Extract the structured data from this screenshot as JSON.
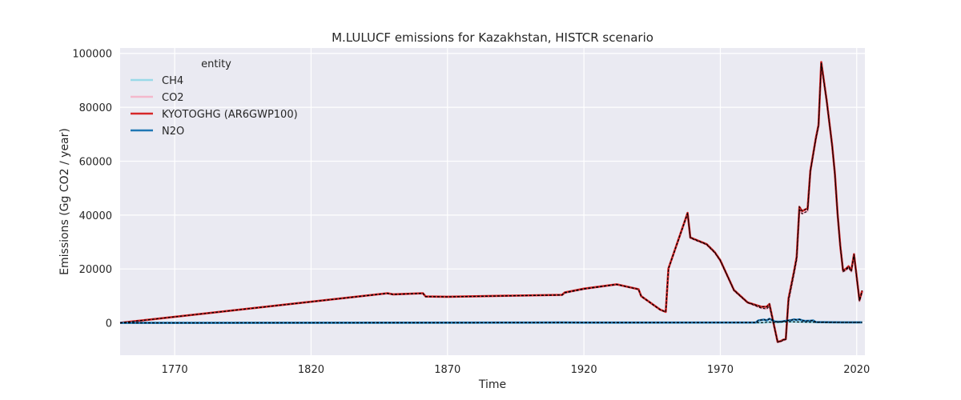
{
  "chart_data": {
    "type": "line",
    "title": "M.LULUCF emissions for Kazakhstan, HISTCR scenario",
    "xlabel": "Time",
    "ylabel": "Emissions (Gg CO2 / year)",
    "xlim": [
      1750,
      2023
    ],
    "ylim": [
      -12000,
      102000
    ],
    "xticks": [
      1770,
      1820,
      1870,
      1920,
      1970,
      2020
    ],
    "yticks": [
      0,
      20000,
      40000,
      60000,
      80000,
      100000
    ],
    "grid": true,
    "legend": {
      "title": "entity",
      "placement": "top-left"
    },
    "series": [
      {
        "name": "CH4",
        "color": "#9ad9e8",
        "x": [
          1750,
          1900,
          1985,
          1988,
          1990,
          1995,
          2000,
          2010,
          2022
        ],
        "y": [
          0,
          30,
          80,
          250,
          200,
          400,
          300,
          150,
          150
        ]
      },
      {
        "name": "CO2",
        "color": "#f4b8cc",
        "x": [
          1750,
          1848,
          1850,
          1861,
          1862,
          1870,
          1912,
          1913,
          1920,
          1932,
          1940,
          1941,
          1948,
          1950,
          1951,
          1958,
          1959,
          1965,
          1968,
          1970,
          1975,
          1980,
          1985,
          1987,
          1988,
          1991,
          1992,
          1993,
          1994,
          1995,
          1997,
          1998,
          1999,
          2000,
          2002,
          2003,
          2005,
          2006,
          2007,
          2009,
          2011,
          2012,
          2013,
          2014,
          2015,
          2016,
          2017,
          2018,
          2019,
          2021,
          2022
        ],
        "y": [
          0,
          10900,
          10500,
          10900,
          9700,
          9600,
          10300,
          11100,
          12500,
          14200,
          12400,
          9800,
          4800,
          4000,
          20000,
          40500,
          31500,
          29000,
          26000,
          23000,
          12000,
          7500,
          5500,
          5200,
          6300,
          -7200,
          -7000,
          -6500,
          -6200,
          8000,
          18000,
          23500,
          42000,
          40500,
          41500,
          56000,
          68000,
          73000,
          96000,
          82000,
          65500,
          55000,
          40000,
          28000,
          19000,
          19500,
          20500,
          19000,
          25000,
          8000,
          11500
        ]
      },
      {
        "name": "KYOTOGHG (AR6GWP100)",
        "color": "#d62728",
        "x": [
          1750,
          1848,
          1850,
          1861,
          1862,
          1870,
          1912,
          1913,
          1920,
          1932,
          1940,
          1941,
          1948,
          1950,
          1951,
          1958,
          1959,
          1965,
          1968,
          1970,
          1975,
          1980,
          1985,
          1987,
          1988,
          1991,
          1992,
          1993,
          1994,
          1995,
          1997,
          1998,
          1999,
          2000,
          2002,
          2003,
          2005,
          2006,
          2007,
          2009,
          2011,
          2012,
          2013,
          2014,
          2015,
          2016,
          2017,
          2018,
          2019,
          2021,
          2022
        ],
        "y": [
          0,
          11000,
          10600,
          11000,
          9800,
          9700,
          10400,
          11300,
          12700,
          14300,
          12500,
          9900,
          4900,
          4100,
          20200,
          40800,
          31700,
          29200,
          26200,
          23200,
          12200,
          7600,
          6000,
          6000,
          7000,
          -7000,
          -6800,
          -6300,
          -6000,
          9000,
          19000,
          24500,
          43000,
          41500,
          42500,
          56500,
          68500,
          73500,
          96800,
          82500,
          66000,
          55500,
          40500,
          28500,
          19500,
          20000,
          21000,
          19500,
          25500,
          8500,
          12000
        ]
      },
      {
        "name": "N2O",
        "color": "#1f77b4",
        "x": [
          1750,
          1900,
          1912,
          1920,
          1983,
          1984,
          1986,
          1987,
          1988,
          1990,
          1992,
          1993,
          1995,
          1996,
          1997,
          1998,
          1999,
          2000,
          2001,
          2003,
          2004,
          2005,
          2008,
          2015,
          2022
        ],
        "y": [
          0,
          100,
          150,
          100,
          150,
          900,
          1200,
          900,
          1500,
          500,
          400,
          600,
          900,
          1000,
          1300,
          1100,
          1300,
          900,
          700,
          800,
          900,
          300,
          250,
          200,
          200
        ]
      }
    ]
  }
}
